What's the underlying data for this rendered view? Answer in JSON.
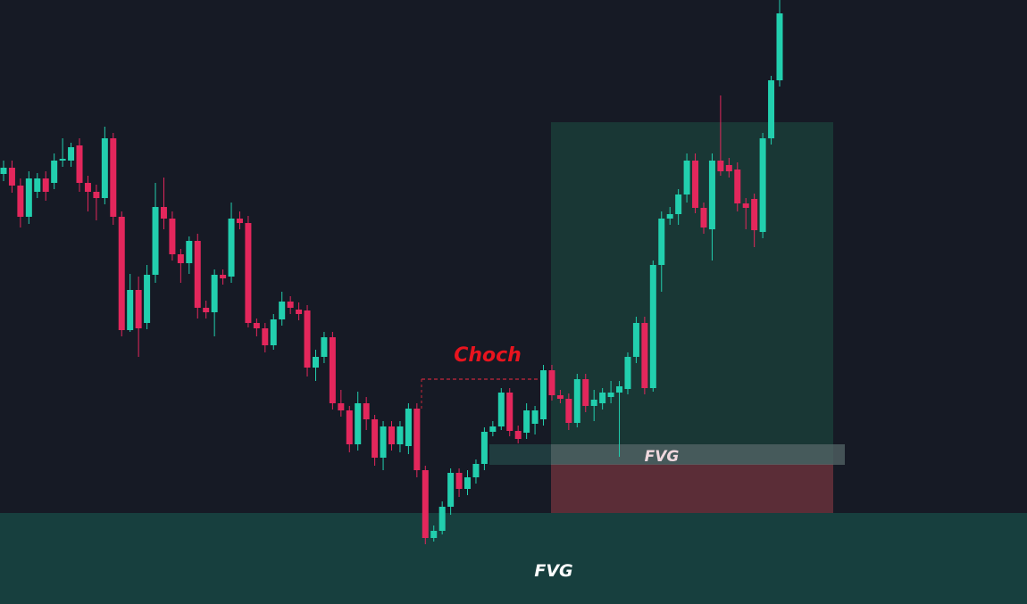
{
  "chart_data": {
    "type": "candlestick",
    "annotations": {
      "choch": "Choch",
      "fvg_upper": "FVG",
      "fvg_lower": "FVG"
    },
    "ylim": [
      0,
      677
    ],
    "up_color": "#22cfae",
    "down_color": "#e3275c",
    "open": [
      482,
      489,
      469,
      434,
      462,
      477,
      472,
      497,
      497,
      514,
      472,
      462,
      455,
      522,
      434,
      307,
      352,
      315,
      369,
      445,
      432,
      392,
      382,
      407,
      332,
      327,
      369,
      367,
      432,
      427,
      315,
      309,
      290,
      319,
      339,
      330,
      329,
      265,
      277,
      299,
      225,
      217,
      179,
      225,
      207,
      164,
      199,
      179,
      177,
      219,
      150,
      74,
      82,
      109,
      147,
      129,
      142,
      157,
      193,
      199,
      237,
      194,
      192,
      202,
      207,
      262,
      234,
      230,
      203,
      252,
      222,
      225,
      232,
      237,
      241,
      277,
      315,
      242,
      380,
      432,
      437,
      459,
      497,
      444,
      420,
      497,
      492,
      487,
      449,
      454,
      417,
      522,
      587
    ],
    "high": [
      497,
      497,
      477,
      485,
      483,
      485,
      505,
      522,
      517,
      522,
      480,
      470,
      535,
      528,
      440,
      370,
      367,
      380,
      472,
      478,
      440,
      398,
      412,
      415,
      340,
      375,
      375,
      450,
      440,
      435,
      320,
      315,
      325,
      350,
      345,
      338,
      335,
      285,
      305,
      305,
      240,
      222,
      238,
      232,
      212,
      205,
      205,
      205,
      225,
      225,
      155,
      88,
      115,
      152,
      152,
      150,
      162,
      198,
      205,
      242,
      242,
      200,
      225,
      222,
      268,
      268,
      240,
      236,
      258,
      258,
      240,
      242,
      250,
      250,
      282,
      322,
      322,
      385,
      440,
      445,
      465,
      505,
      505,
      450,
      505,
      570,
      500,
      495,
      455,
      460,
      528,
      592,
      677
    ],
    "low": [
      474,
      461,
      422,
      426,
      455,
      452,
      465,
      490,
      490,
      462,
      440,
      430,
      448,
      425,
      300,
      305,
      277,
      308,
      360,
      420,
      385,
      360,
      370,
      320,
      320,
      300,
      358,
      360,
      420,
      310,
      300,
      282,
      285,
      312,
      325,
      318,
      255,
      250,
      270,
      218,
      210,
      170,
      172,
      195,
      155,
      150,
      172,
      170,
      168,
      142,
      67,
      70,
      78,
      100,
      120,
      122,
      135,
      150,
      188,
      195,
      188,
      180,
      185,
      190,
      200,
      228,
      225,
      195,
      198,
      215,
      205,
      218,
      225,
      165,
      235,
      270,
      235,
      238,
      350,
      425,
      425,
      450,
      438,
      415,
      385,
      480,
      478,
      440,
      420,
      400,
      410,
      515,
      580
    ],
    "close": [
      489,
      469,
      434,
      477,
      477,
      462,
      497,
      499,
      512,
      472,
      462,
      455,
      522,
      434,
      307,
      352,
      309,
      369,
      445,
      432,
      392,
      382,
      407,
      332,
      327,
      369,
      365,
      432,
      427,
      315,
      309,
      290,
      319,
      339,
      332,
      325,
      265,
      277,
      299,
      225,
      217,
      179,
      225,
      207,
      164,
      199,
      179,
      199,
      219,
      150,
      74,
      82,
      109,
      147,
      129,
      142,
      157,
      193,
      199,
      237,
      194,
      185,
      217,
      217,
      262,
      234,
      230,
      203,
      252,
      222,
      229,
      237,
      237,
      244,
      277,
      315,
      242,
      380,
      432,
      437,
      459,
      497,
      444,
      422,
      497,
      485,
      485,
      449,
      444,
      419,
      522,
      587,
      662
    ]
  }
}
